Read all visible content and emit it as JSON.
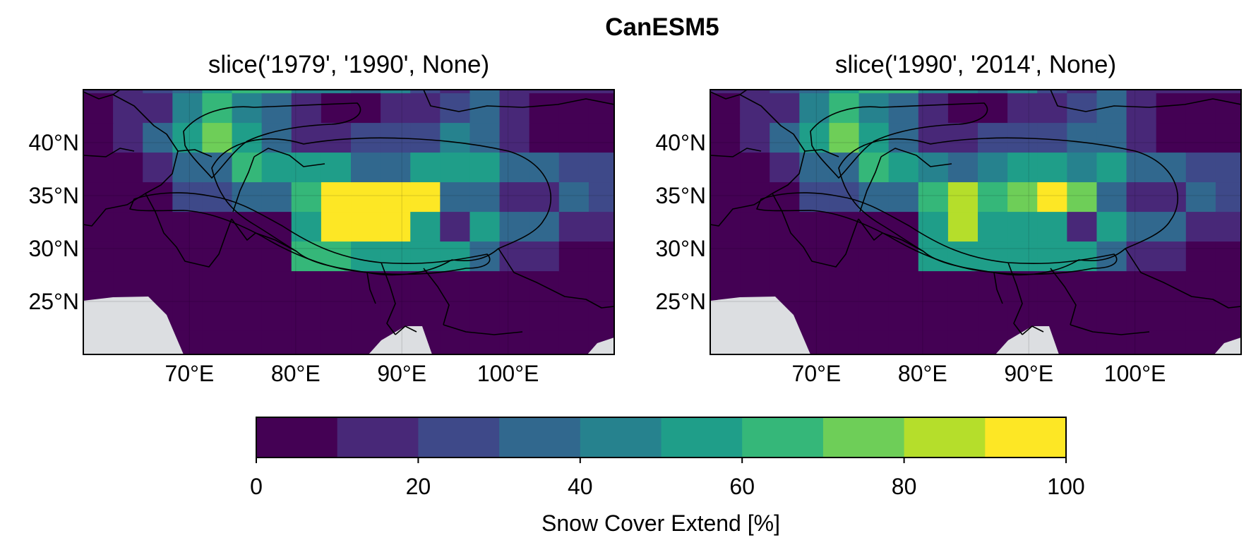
{
  "figure": {
    "suptitle": "CanESM5"
  },
  "chart_data": {
    "type": "heatmap",
    "title": "CanESM5",
    "panels": [
      {
        "title": "slice('1979', '1990', None)",
        "lon_range": [
          60,
          110
        ],
        "lat_range": [
          20,
          45
        ],
        "grid": {
          "lons": [
            57.2,
            60,
            62.8,
            65.6,
            68.4,
            71.2,
            74,
            76.8,
            79.6,
            82.4,
            85.2,
            88,
            90.8,
            93.6,
            96.4,
            99.2,
            102,
            104.8,
            107.6,
            110.4
          ],
          "lats": [
            19.5,
            22.3,
            25.1,
            27.9,
            30.7,
            33.5,
            36.3,
            39.1,
            41.9,
            44.7,
            47.5
          ],
          "values": [
            [
              0,
              0,
              0,
              0,
              0,
              0,
              0,
              0,
              0,
              0,
              0,
              0,
              0,
              0,
              0,
              0,
              0,
              0,
              0
            ],
            [
              0,
              0,
              0,
              0,
              0,
              0,
              0,
              0,
              0,
              0,
              0,
              0,
              0,
              0,
              0,
              0,
              0,
              0,
              0
            ],
            [
              0,
              0,
              0,
              0,
              0,
              0,
              0,
              0,
              0,
              0,
              0,
              0,
              0,
              0,
              0,
              0,
              0,
              0,
              0
            ],
            [
              0,
              0,
              0,
              0,
              0,
              0,
              0,
              0,
              65,
              65,
              55,
              55,
              55,
              55,
              35,
              15,
              15,
              0,
              0
            ],
            [
              0,
              0,
              0,
              0,
              0,
              0,
              0,
              0,
              55,
              95,
              95,
              95,
              55,
              15,
              55,
              35,
              35,
              15,
              15
            ],
            [
              0,
              0,
              0,
              0,
              25,
              25,
              35,
              35,
              65,
              95,
              95,
              95,
              95,
              35,
              35,
              15,
              15,
              35,
              25
            ],
            [
              0,
              0,
              0,
              15,
              35,
              35,
              65,
              55,
              55,
              55,
              35,
              35,
              55,
              55,
              55,
              35,
              35,
              25,
              25
            ],
            [
              0,
              0,
              15,
              35,
              55,
              75,
              55,
              35,
              15,
              15,
              25,
              25,
              25,
              45,
              35,
              15,
              0,
              0,
              0
            ],
            [
              0,
              0,
              15,
              15,
              45,
              65,
              45,
              35,
              15,
              0,
              0,
              15,
              15,
              25,
              35,
              15,
              0,
              0,
              0
            ],
            [
              0,
              15,
              15,
              25,
              35,
              55,
              65,
              65,
              45,
              45,
              35,
              45,
              25,
              15,
              35,
              15,
              15,
              15,
              15
            ]
          ]
        }
      },
      {
        "title": "slice('1990', '2014', None)",
        "lon_range": [
          60,
          110
        ],
        "lat_range": [
          20,
          45
        ],
        "grid": {
          "lons": [
            57.2,
            60,
            62.8,
            65.6,
            68.4,
            71.2,
            74,
            76.8,
            79.6,
            82.4,
            85.2,
            88,
            90.8,
            93.6,
            96.4,
            99.2,
            102,
            104.8,
            107.6,
            110.4
          ],
          "lats": [
            19.5,
            22.3,
            25.1,
            27.9,
            30.7,
            33.5,
            36.3,
            39.1,
            41.9,
            44.7,
            47.5
          ],
          "values": [
            [
              0,
              0,
              0,
              0,
              0,
              0,
              0,
              0,
              0,
              0,
              0,
              0,
              0,
              0,
              0,
              0,
              0,
              0,
              0
            ],
            [
              0,
              0,
              0,
              0,
              0,
              0,
              0,
              0,
              0,
              0,
              0,
              0,
              0,
              0,
              0,
              0,
              0,
              0,
              0
            ],
            [
              0,
              0,
              0,
              0,
              0,
              0,
              0,
              0,
              0,
              0,
              0,
              0,
              0,
              0,
              0,
              0,
              0,
              0,
              0
            ],
            [
              0,
              0,
              0,
              0,
              0,
              0,
              0,
              0,
              55,
              55,
              55,
              55,
              55,
              55,
              35,
              15,
              15,
              0,
              0
            ],
            [
              0,
              0,
              0,
              0,
              0,
              0,
              0,
              0,
              55,
              85,
              55,
              55,
              55,
              15,
              55,
              35,
              35,
              15,
              15
            ],
            [
              0,
              0,
              0,
              0,
              25,
              25,
              35,
              35,
              65,
              85,
              65,
              75,
              95,
              75,
              35,
              15,
              15,
              35,
              25
            ],
            [
              0,
              0,
              0,
              15,
              35,
              35,
              65,
              55,
              45,
              35,
              45,
              55,
              55,
              45,
              55,
              35,
              35,
              25,
              25
            ],
            [
              0,
              0,
              15,
              35,
              55,
              75,
              55,
              35,
              15,
              15,
              25,
              25,
              25,
              35,
              35,
              15,
              0,
              0,
              0
            ],
            [
              0,
              0,
              15,
              15,
              45,
              65,
              45,
              35,
              15,
              0,
              0,
              15,
              15,
              25,
              35,
              15,
              0,
              0,
              0
            ],
            [
              0,
              15,
              15,
              25,
              35,
              55,
              65,
              65,
              45,
              45,
              35,
              45,
              25,
              15,
              35,
              15,
              15,
              15,
              15
            ]
          ]
        }
      }
    ],
    "x_ticks": [
      {
        "value": 70,
        "label": "70°E"
      },
      {
        "value": 80,
        "label": "80°E"
      },
      {
        "value": 90,
        "label": "90°E"
      },
      {
        "value": 100,
        "label": "100°E"
      }
    ],
    "y_ticks": [
      {
        "value": 25,
        "label": "25°N"
      },
      {
        "value": 30,
        "label": "30°N"
      },
      {
        "value": 35,
        "label": "35°N"
      },
      {
        "value": 40,
        "label": "40°N"
      }
    ],
    "colorbar": {
      "label": "Snow Cover Extend [%]",
      "range": [
        0,
        100
      ],
      "ticks": [
        0,
        20,
        40,
        60,
        80,
        100
      ],
      "tick_labels": [
        "0",
        "20",
        "40",
        "60",
        "80",
        "100"
      ],
      "colors": [
        "#440154",
        "#482878",
        "#3e4989",
        "#31688e",
        "#26828e",
        "#1f9e89",
        "#35b779",
        "#6ece58",
        "#b5de2b",
        "#fde725"
      ]
    },
    "ocean_color": "#dcdee1",
    "border_color": "#000000",
    "grid": true
  }
}
